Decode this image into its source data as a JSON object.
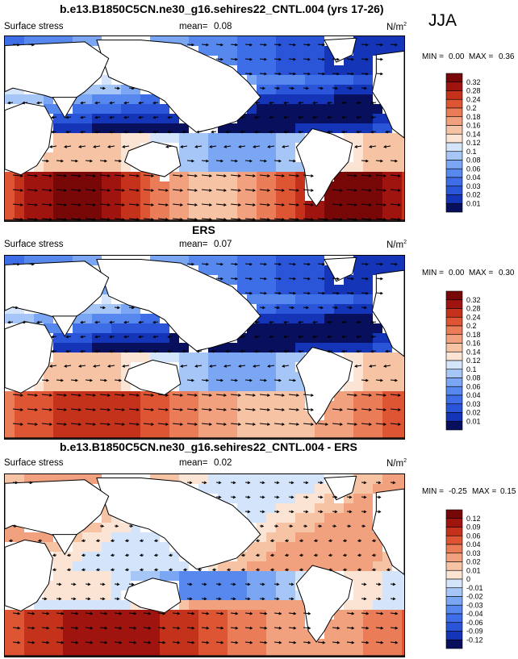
{
  "season": "JJA",
  "panels": [
    {
      "title": "b.e13.B1850C5CN.ne30_g16.sehires22_CNTL.004 (yrs 17-26)",
      "left_label": "Surface stress",
      "mean_label": "mean=",
      "mean_value": "0.08",
      "units": "N/m",
      "units_sup": "2",
      "min_label": "MIN =",
      "min_value": "0.00",
      "max_label": "MAX =",
      "max_value": "0.36",
      "colorbar_levels": [
        "0.32",
        "0.28",
        "0.24",
        "0.2",
        "0.18",
        "0.16",
        "0.14",
        "0.12",
        "0.1",
        "0.08",
        "0.06",
        "0.04",
        "0.03",
        "0.02",
        "0.01"
      ]
    },
    {
      "title": "ERS",
      "left_label": "Surface stress",
      "mean_label": "mean=",
      "mean_value": "0.07",
      "units": "N/m",
      "units_sup": "2",
      "min_label": "MIN =",
      "min_value": "0.00",
      "max_label": "MAX =",
      "max_value": "0.30",
      "colorbar_levels": [
        "0.32",
        "0.28",
        "0.24",
        "0.2",
        "0.18",
        "0.16",
        "0.14",
        "0.12",
        "0.1",
        "0.08",
        "0.06",
        "0.04",
        "0.03",
        "0.02",
        "0.01"
      ]
    },
    {
      "title": "b.e13.B1850C5CN.ne30_g16.sehires22_CNTL.004 - ERS",
      "left_label": "Surface stress",
      "mean_label": "mean=",
      "mean_value": "0.02",
      "units": "N/m",
      "units_sup": "2",
      "min_label": "MIN =",
      "min_value": "-0.25",
      "max_label": "MAX =",
      "max_value": "0.15",
      "colorbar_levels": [
        "0.12",
        "0.09",
        "0.06",
        "0.04",
        "0.03",
        "0.02",
        "0.01",
        "0",
        "-0.01",
        "-0.02",
        "-0.03",
        "-0.04",
        "-0.06",
        "-0.09",
        "-0.12"
      ]
    }
  ],
  "palette": [
    "#08105e",
    "#1535b8",
    "#2a55d8",
    "#3d6ee8",
    "#5688ee",
    "#7aa6f3",
    "#a5c6f7",
    "#d3e4fb",
    "#fbe4d3",
    "#f6c3a5",
    "#f1a17d",
    "#ea7c57",
    "#dd5533",
    "#c4321c",
    "#a01410",
    "#780808"
  ]
}
